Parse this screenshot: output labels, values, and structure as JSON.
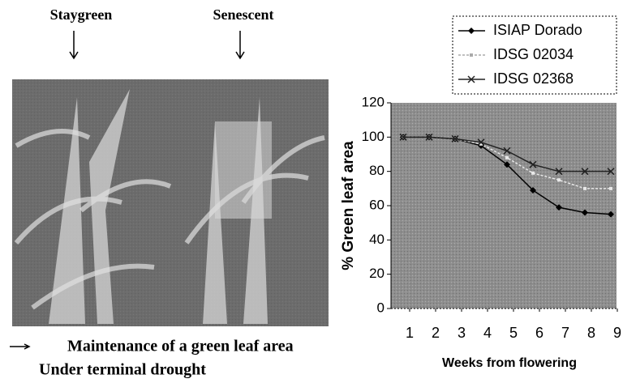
{
  "figure": {
    "photo_labels": [
      "Staygreen",
      "Senescent"
    ],
    "caption": [
      "Maintenance of a green leaf area",
      "Under terminal drought"
    ]
  },
  "chart_data": {
    "type": "line",
    "x": [
      1,
      2,
      3,
      4,
      5,
      6,
      7,
      8,
      9
    ],
    "series": [
      {
        "name": "ISIAP Dorado",
        "color": "#000000",
        "values": [
          100,
          100,
          99,
          95,
          84,
          69,
          59,
          56,
          55
        ]
      },
      {
        "name": "IDSG 02034",
        "color": "#e8e8e8",
        "values": [
          100,
          100,
          99,
          96,
          88,
          79,
          75,
          70,
          70
        ]
      },
      {
        "name": "IDSG 02368",
        "color": "#222222",
        "values": [
          100,
          100,
          99,
          97,
          92,
          84,
          80,
          80,
          80
        ]
      }
    ],
    "xlabel": "Weeks from flowering",
    "ylabel": "% Green leaf area",
    "xlim": [
      1,
      9
    ],
    "xticks": [
      1,
      2,
      3,
      4,
      5,
      6,
      7,
      8,
      9
    ],
    "ylim": [
      0,
      120
    ],
    "yticks": [
      0,
      20,
      40,
      60,
      80,
      100,
      120
    ],
    "legend": "top-right"
  }
}
